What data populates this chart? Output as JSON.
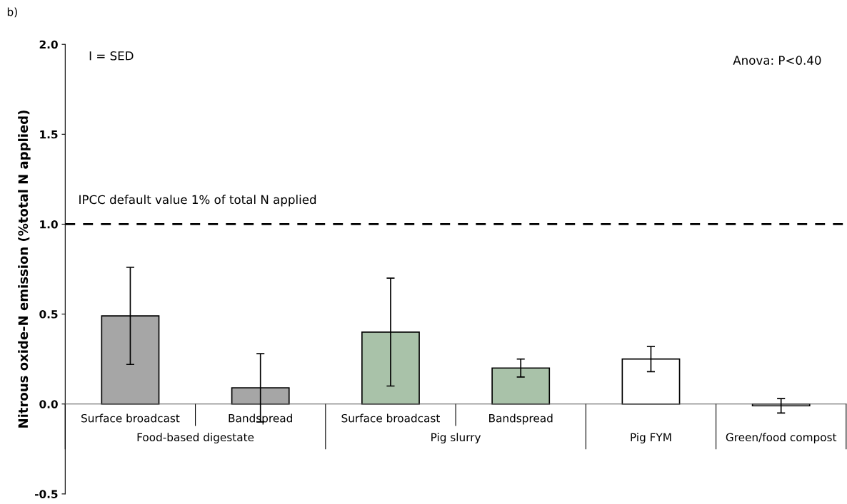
{
  "chart_data": {
    "type": "bar",
    "title": "b)",
    "ylabel": "Nitrous oxide-N emission (%total N applied)",
    "categories": [
      "Surface broadcast",
      "Bandspread",
      "Surface broadcast",
      "Bandspread",
      null,
      null
    ],
    "values": [
      0.49,
      0.09,
      0.4,
      0.2,
      0.25,
      -0.01
    ],
    "errors": [
      0.27,
      0.19,
      0.3,
      0.05,
      0.07,
      0.04
    ],
    "colors": [
      "#a6a6a6",
      "#a6a6a6",
      "#a9c2a9",
      "#a9c2a9",
      "#ffffff",
      "#ffffff"
    ],
    "ylim": [
      -0.5,
      2.0
    ],
    "yticks": [
      {
        "value": -0.5,
        "label": "-0.5"
      },
      {
        "value": 0,
        "label": "0.0"
      },
      {
        "value": 0.5,
        "label": "0.5"
      },
      {
        "value": 1,
        "label": "1.0"
      },
      {
        "value": 1.5,
        "label": "1.5"
      },
      {
        "value": 2,
        "label": "2.0"
      }
    ],
    "ref_lines": [
      {
        "axis": "y",
        "value": 1,
        "label": "IPCC default value 1% of total N applied",
        "color": "#000000",
        "line_style": "dashed"
      }
    ],
    "annotations": [
      "I = SED",
      "Anova: P<0.40",
      "Food-based digestate",
      "Pig slurry",
      "Pig FYM",
      "Green/food compost"
    ],
    "grid": false
  }
}
